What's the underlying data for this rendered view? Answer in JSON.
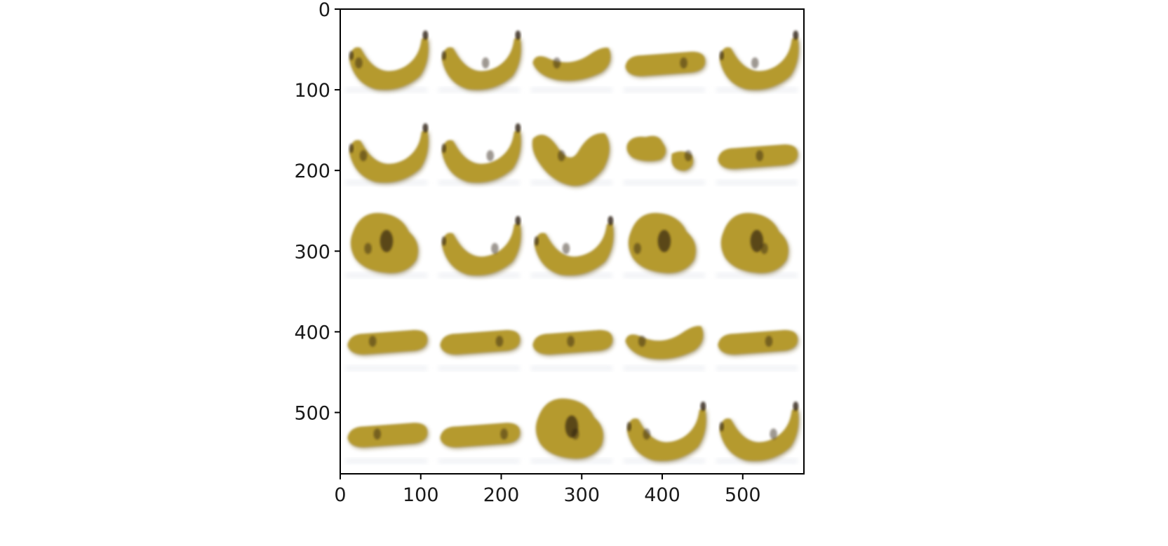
{
  "chart_data": {
    "type": "image_grid",
    "title": "",
    "xlabel": "",
    "ylabel": "",
    "xlim": [
      0,
      576
    ],
    "ylim": [
      576,
      0
    ],
    "x_ticks": [
      0,
      100,
      200,
      300,
      400,
      500
    ],
    "y_ticks": [
      0,
      100,
      200,
      300,
      400,
      500
    ],
    "x_tick_labels": [
      "0",
      "100",
      "200",
      "300",
      "400",
      "500"
    ],
    "y_tick_labels": [
      "0",
      "100",
      "200",
      "300",
      "400",
      "500"
    ],
    "grid_rows": 5,
    "grid_cols": 5,
    "cell_size": 115,
    "tile_content": "banana",
    "colors": {
      "banana": "#b59a2e",
      "banana_shadow": "#6f5a1a",
      "spot": "#2a1e0e",
      "axis": "#000000",
      "background": "#ffffff"
    },
    "tiles": [
      {
        "row": 0,
        "col": 0,
        "shape": "curved"
      },
      {
        "row": 0,
        "col": 1,
        "shape": "curved"
      },
      {
        "row": 0,
        "col": 2,
        "shape": "slight-curve"
      },
      {
        "row": 0,
        "col": 3,
        "shape": "straight"
      },
      {
        "row": 0,
        "col": 4,
        "shape": "curved"
      },
      {
        "row": 1,
        "col": 0,
        "shape": "curved"
      },
      {
        "row": 1,
        "col": 1,
        "shape": "curved"
      },
      {
        "row": 1,
        "col": 2,
        "shape": "deep-curve"
      },
      {
        "row": 1,
        "col": 3,
        "shape": "broken"
      },
      {
        "row": 1,
        "col": 4,
        "shape": "straight"
      },
      {
        "row": 2,
        "col": 0,
        "shape": "blob"
      },
      {
        "row": 2,
        "col": 1,
        "shape": "curved"
      },
      {
        "row": 2,
        "col": 2,
        "shape": "curved"
      },
      {
        "row": 2,
        "col": 3,
        "shape": "blob"
      },
      {
        "row": 2,
        "col": 4,
        "shape": "blob"
      },
      {
        "row": 3,
        "col": 0,
        "shape": "straight"
      },
      {
        "row": 3,
        "col": 1,
        "shape": "straight"
      },
      {
        "row": 3,
        "col": 2,
        "shape": "straight"
      },
      {
        "row": 3,
        "col": 3,
        "shape": "slight-curve"
      },
      {
        "row": 3,
        "col": 4,
        "shape": "straight"
      },
      {
        "row": 4,
        "col": 0,
        "shape": "straight"
      },
      {
        "row": 4,
        "col": 1,
        "shape": "straight"
      },
      {
        "row": 4,
        "col": 2,
        "shape": "blob"
      },
      {
        "row": 4,
        "col": 3,
        "shape": "curved"
      },
      {
        "row": 4,
        "col": 4,
        "shape": "curved"
      }
    ]
  }
}
